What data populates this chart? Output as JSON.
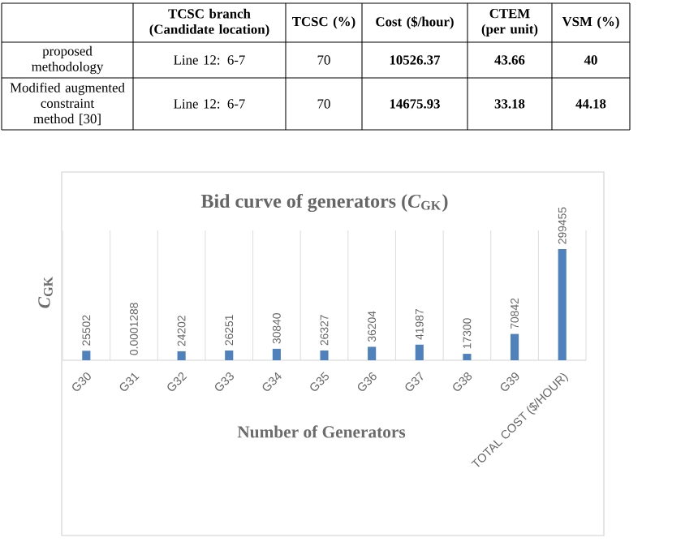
{
  "chart_data": [
    {
      "type": "other",
      "annotations": [
        "TCSC branch (Candidate location)",
        "TCSC (%)",
        "Cost ($/hour)",
        "CTEM (per unit)",
        "VSM (%)",
        "proposed methodology",
        "Line 12: 6-7",
        "70",
        "10526.37",
        "43.66",
        "40",
        "Modified augmented constraint method [30]",
        "Line 12: 6-7",
        "70",
        "14675.93",
        "33.18",
        "44.18"
      ]
    },
    {
      "type": "bar",
      "title": "Bid curve of generators (*C*$_{GK}$)",
      "xlabel": "Number of Generators",
      "ylabel": "*C*$_{GK}$",
      "categories": [
        "G30",
        "G31",
        "G32",
        "G33",
        "G34",
        "G35",
        "G36",
        "G37",
        "G38",
        "G39",
        "TOTAL COST ($/HOUR)"
      ],
      "values": [
        25502,
        0.0001288,
        24202,
        26251,
        30840,
        26327,
        36204,
        41987,
        17300,
        70842,
        299455
      ],
      "color": "#4f81bd",
      "ylim": [
        0,
        350000
      ],
      "grid": "x",
      "data_labels": true,
      "tick_labels": "x"
    }
  ]
}
